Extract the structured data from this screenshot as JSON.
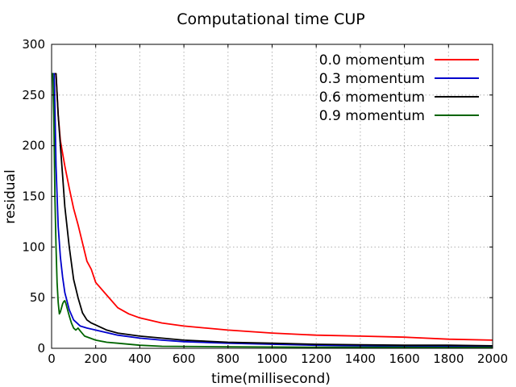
{
  "chart_data": {
    "type": "line",
    "title": "Computational time CUP",
    "xlabel": "time(millisecond)",
    "ylabel": "residual",
    "xlim": [
      0,
      2000
    ],
    "ylim": [
      0,
      300
    ],
    "xticks": [
      0,
      200,
      400,
      600,
      800,
      1000,
      1200,
      1400,
      1600,
      1800,
      2000
    ],
    "yticks": [
      0,
      50,
      100,
      150,
      200,
      250,
      300
    ],
    "grid": true,
    "legend_position": "top-right",
    "series": [
      {
        "name": "0.0 momentum",
        "color": "#ff0000",
        "points": [
          [
            10,
            271
          ],
          [
            20,
            271
          ],
          [
            30,
            230
          ],
          [
            40,
            205
          ],
          [
            60,
            180
          ],
          [
            80,
            158
          ],
          [
            100,
            138
          ],
          [
            120,
            122
          ],
          [
            140,
            104
          ],
          [
            160,
            86
          ],
          [
            180,
            78
          ],
          [
            200,
            65
          ],
          [
            240,
            55
          ],
          [
            300,
            40
          ],
          [
            350,
            34
          ],
          [
            400,
            30
          ],
          [
            500,
            25
          ],
          [
            600,
            22
          ],
          [
            700,
            20
          ],
          [
            800,
            18
          ],
          [
            1000,
            15
          ],
          [
            1200,
            13
          ],
          [
            1400,
            12
          ],
          [
            1600,
            11
          ],
          [
            1800,
            9
          ],
          [
            2000,
            8
          ]
        ]
      },
      {
        "name": "0.3 momentum",
        "color": "#0000cc",
        "points": [
          [
            5,
            271
          ],
          [
            12,
            271
          ],
          [
            20,
            180
          ],
          [
            30,
            120
          ],
          [
            40,
            90
          ],
          [
            50,
            70
          ],
          [
            60,
            55
          ],
          [
            80,
            38
          ],
          [
            100,
            28
          ],
          [
            130,
            22
          ],
          [
            160,
            20
          ],
          [
            200,
            18
          ],
          [
            300,
            13
          ],
          [
            400,
            10
          ],
          [
            500,
            8
          ],
          [
            600,
            6.5
          ],
          [
            800,
            5
          ],
          [
            1000,
            4
          ],
          [
            1200,
            3
          ],
          [
            1400,
            2.5
          ],
          [
            1600,
            2
          ],
          [
            1800,
            2
          ],
          [
            2000,
            1.5
          ]
        ]
      },
      {
        "name": "0.6 momentum",
        "color": "#000000",
        "points": [
          [
            15,
            271
          ],
          [
            20,
            271
          ],
          [
            30,
            230
          ],
          [
            40,
            200
          ],
          [
            50,
            170
          ],
          [
            60,
            140
          ],
          [
            80,
            100
          ],
          [
            100,
            68
          ],
          [
            120,
            50
          ],
          [
            140,
            35
          ],
          [
            160,
            28
          ],
          [
            180,
            25
          ],
          [
            200,
            23
          ],
          [
            250,
            18
          ],
          [
            300,
            15
          ],
          [
            400,
            12
          ],
          [
            500,
            10
          ],
          [
            600,
            8
          ],
          [
            800,
            6
          ],
          [
            1000,
            5
          ],
          [
            1200,
            4
          ],
          [
            1400,
            3.5
          ],
          [
            1600,
            3
          ],
          [
            1800,
            3
          ],
          [
            2000,
            2.5
          ]
        ]
      },
      {
        "name": "0.9 momentum",
        "color": "#006400",
        "points": [
          [
            0,
            271
          ],
          [
            5,
            271
          ],
          [
            10,
            230
          ],
          [
            15,
            150
          ],
          [
            20,
            100
          ],
          [
            25,
            65
          ],
          [
            30,
            45
          ],
          [
            35,
            34
          ],
          [
            40,
            36
          ],
          [
            45,
            40
          ],
          [
            50,
            44
          ],
          [
            55,
            46
          ],
          [
            60,
            47
          ],
          [
            65,
            44
          ],
          [
            70,
            40
          ],
          [
            80,
            32
          ],
          [
            90,
            25
          ],
          [
            100,
            20
          ],
          [
            110,
            18
          ],
          [
            120,
            20
          ],
          [
            130,
            17
          ],
          [
            150,
            12
          ],
          [
            200,
            8
          ],
          [
            250,
            6
          ],
          [
            300,
            5
          ],
          [
            400,
            3
          ],
          [
            500,
            2
          ],
          [
            800,
            1.5
          ],
          [
            1200,
            1
          ],
          [
            1600,
            1
          ],
          [
            2000,
            0.8
          ]
        ]
      }
    ]
  }
}
